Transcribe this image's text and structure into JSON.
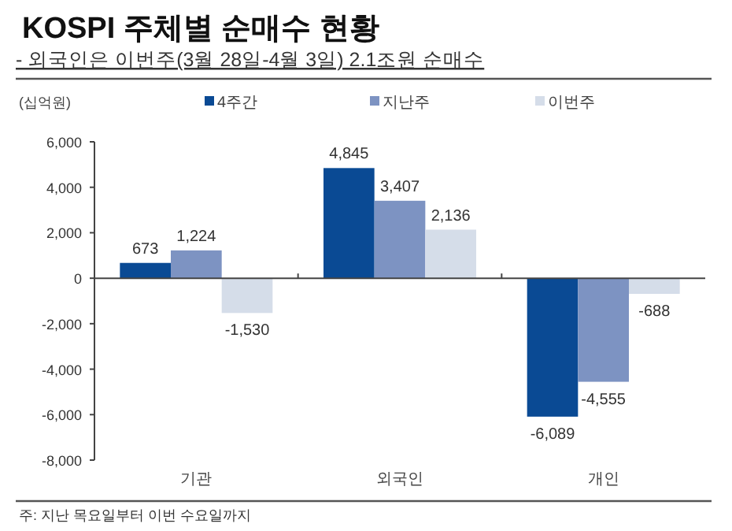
{
  "chart_data": {
    "type": "bar",
    "title": "KOSPI 주체별 순매수 현황",
    "subtitle": "- 외국인은 이번주(3월 28일-4월 3일) 2.1조원 순매수",
    "ylabel": "(십억원)",
    "categories": [
      "기관",
      "외국인",
      "개인"
    ],
    "series": [
      {
        "name": "4주간",
        "color": "#0a4a94",
        "values": [
          673,
          4845,
          -6089
        ],
        "value_labels": [
          "673",
          "4,845",
          "-6,089"
        ]
      },
      {
        "name": "지난주",
        "color": "#7d93c2",
        "values": [
          1224,
          3407,
          -4555
        ],
        "value_labels": [
          "1,224",
          "3,407",
          "-4,555"
        ]
      },
      {
        "name": "이번주",
        "color": "#d5dde9",
        "values": [
          -1530,
          2136,
          -688
        ],
        "value_labels": [
          "-1,530",
          "2,136",
          "-688"
        ]
      }
    ],
    "ylim": [
      -8000,
      6000
    ],
    "yticks": [
      {
        "value": -8000,
        "label": "-8,000"
      },
      {
        "value": -6000,
        "label": "-6,000"
      },
      {
        "value": -4000,
        "label": "-4,000"
      },
      {
        "value": -2000,
        "label": "-2,000"
      },
      0,
      {
        "value": 2000,
        "label": "2,000"
      },
      {
        "value": 4000,
        "label": "4,000"
      },
      {
        "value": 6000,
        "label": "6,000"
      }
    ],
    "legend": "top",
    "annotations": [
      "주: 지난 목요일부터 이번 수요일까지"
    ]
  }
}
